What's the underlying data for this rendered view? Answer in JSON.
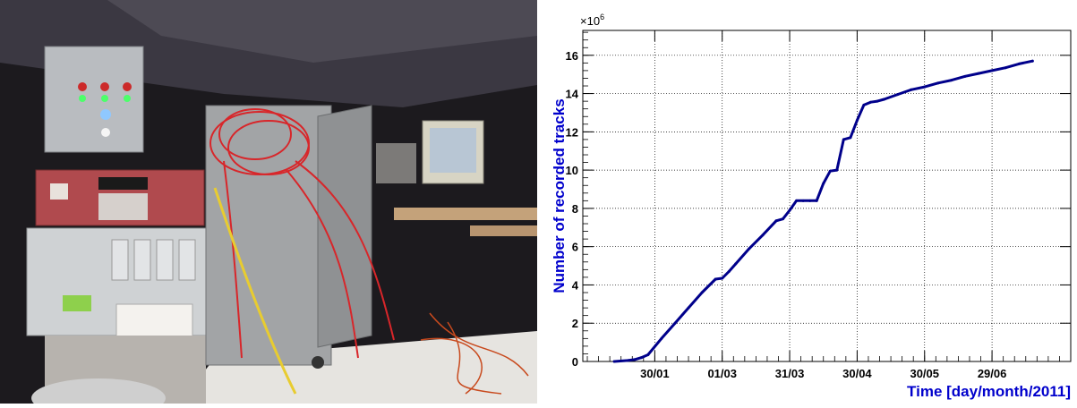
{
  "photo": {
    "description_icon": "photo-equipment-rack"
  },
  "chart_data": {
    "type": "line",
    "xlabel": "Time [day/month/2011]",
    "ylabel": "Number of recorded tracks",
    "y_multiplier": "×10",
    "y_multiplier_exp": "6",
    "x_ticks": [
      "30/01",
      "01/03",
      "31/03",
      "30/04",
      "30/05",
      "29/06"
    ],
    "x_tick_days": [
      30,
      60,
      90,
      120,
      150,
      180
    ],
    "y_ticks": [
      0,
      2,
      4,
      6,
      8,
      10,
      12,
      14,
      16
    ],
    "xlim": [
      -2,
      215
    ],
    "ylim": [
      0,
      17.3
    ],
    "grid": true,
    "line_color": "#00008b",
    "axis_title_color": "#0000cc",
    "series": [
      {
        "x": [
          12,
          18,
          21,
          24,
          27,
          33,
          39,
          45,
          51,
          57,
          60,
          63,
          66,
          72,
          78,
          84,
          87,
          90,
          93,
          96,
          99,
          102,
          105,
          108,
          111,
          114,
          117,
          120,
          123,
          126,
          129,
          132,
          138,
          144,
          150,
          156,
          162,
          168,
          174,
          180,
          186,
          192,
          198
        ],
        "y": [
          0.0,
          0.05,
          0.1,
          0.2,
          0.35,
          1.2,
          2.0,
          2.8,
          3.6,
          4.3,
          4.35,
          4.7,
          5.1,
          5.9,
          6.6,
          7.35,
          7.45,
          7.9,
          8.4,
          8.4,
          8.4,
          8.4,
          9.3,
          9.95,
          10.0,
          11.6,
          11.7,
          12.6,
          13.4,
          13.55,
          13.6,
          13.7,
          13.95,
          14.2,
          14.35,
          14.55,
          14.7,
          14.9,
          15.05,
          15.2,
          15.35,
          15.55,
          15.7
        ]
      }
    ]
  }
}
